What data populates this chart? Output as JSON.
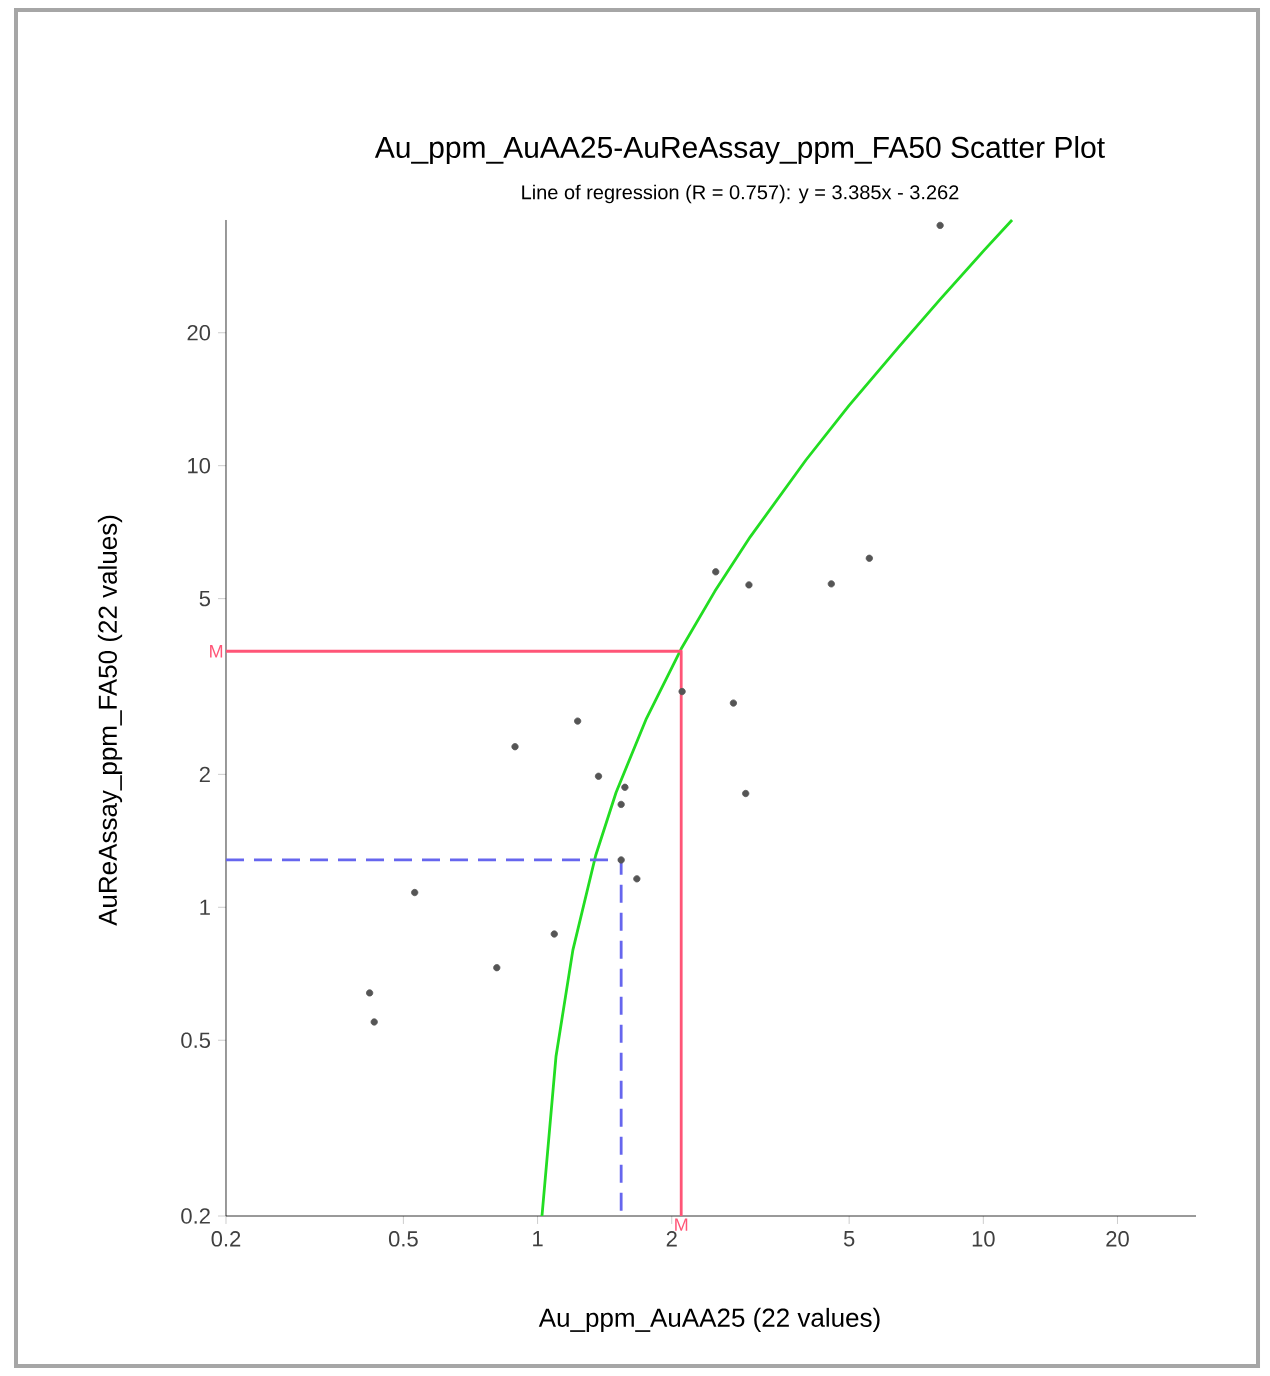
{
  "chart_data": {
    "type": "scatter",
    "title": "Au_ppm_AuAA25-AuReAssay_ppm_FA50 Scatter Plot",
    "subtitle": "Line of regression (R = 0.757):  y = 3.385x - 3.262",
    "xlabel": "Au_ppm_AuAA25 (22 values)",
    "ylabel": "AuReAssay_ppm_FA50 (22 values)",
    "log": "xy",
    "xlim": [
      0.2,
      30
    ],
    "ylim": [
      0.2,
      36
    ],
    "xticks": [
      0.2,
      0.5,
      1,
      2,
      5,
      10,
      20
    ],
    "yticks": [
      0.2,
      0.5,
      1,
      2,
      5,
      10,
      20
    ],
    "annotations": [
      {
        "text": "M",
        "x": 0.2,
        "y": 3.8
      },
      {
        "text": "M",
        "x": 2.1,
        "y": 0.2
      }
    ],
    "series": [
      {
        "color": "#555555",
        "marker": "circle",
        "x": [
          2.51,
          2.98,
          4.56,
          5.55,
          2.11,
          2.75,
          1.23,
          0.89,
          1.37,
          1.57,
          1.54,
          2.93,
          1.54,
          1.67,
          0.53,
          1.09,
          0.81,
          0.42,
          0.43,
          8.0
        ],
        "values": [
          5.75,
          5.37,
          5.4,
          6.17,
          3.08,
          2.9,
          2.64,
          2.31,
          1.98,
          1.87,
          1.71,
          1.81,
          1.28,
          1.16,
          1.08,
          0.87,
          0.73,
          0.64,
          0.55,
          35
        ]
      },
      {
        "type": "line",
        "color": "#22dd22",
        "marker": "none",
        "x": [
          1.023,
          1.1,
          1.2,
          1.35,
          1.5,
          1.75,
          2.1,
          2.5,
          3,
          4,
          5,
          6.5,
          8,
          10,
          11.6
        ],
        "values": [
          0.2,
          0.46,
          0.8,
          1.31,
          1.82,
          2.66,
          3.85,
          5.2,
          6.9,
          10.3,
          13.7,
          18.7,
          23.8,
          30.6,
          36
        ]
      },
      {
        "type": "line",
        "color": "#ff5577",
        "marker": "none",
        "x": [
          0.2,
          2.1,
          2.1
        ],
        "values": [
          3.8,
          3.8,
          0.2
        ]
      },
      {
        "type": "line",
        "color": "#6666ee",
        "marker": "none",
        "line_style": "dashed",
        "x": [
          0.2,
          1.54,
          1.54
        ],
        "values": [
          1.28,
          1.28,
          0.2
        ]
      }
    ]
  }
}
